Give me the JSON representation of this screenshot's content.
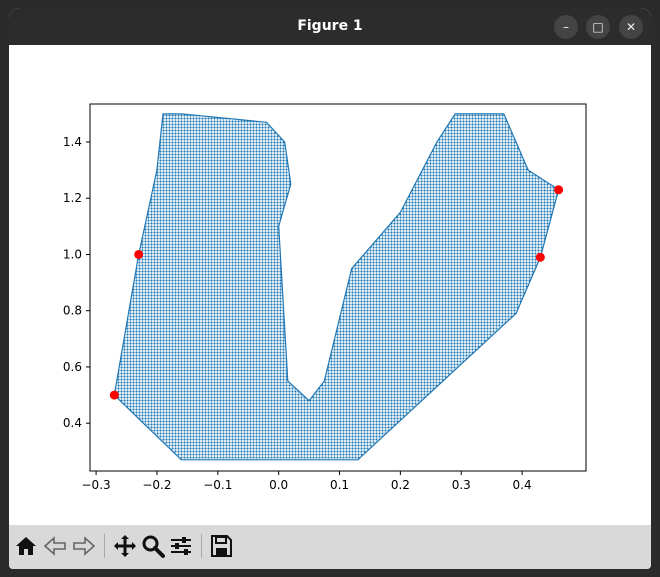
{
  "window": {
    "title": "Figure 1"
  },
  "window_controls": [
    {
      "name": "minimize-button",
      "glyph": "–"
    },
    {
      "name": "maximize-button",
      "glyph": "□"
    },
    {
      "name": "close-button",
      "glyph": "✕"
    }
  ],
  "toolbar": {
    "buttons": [
      "home-icon",
      "back-icon",
      "forward-icon",
      "pan-icon",
      "zoom-icon",
      "configure-subplots-icon",
      "save-icon"
    ]
  },
  "colors": {
    "scatter": "#1f77b4",
    "markers": "#ff0000",
    "titlebar": "#2c2c2c",
    "toolbar": "#d9d9d9"
  },
  "chart_data": {
    "type": "scatter",
    "title": "",
    "xlabel": "",
    "ylabel": "",
    "xlim": [
      -0.31,
      0.505
    ],
    "ylim": [
      0.23,
      1.535
    ],
    "xticks": [
      -0.3,
      -0.2,
      -0.1,
      0.0,
      0.1,
      0.2,
      0.3,
      0.4
    ],
    "xtick_labels": [
      "−0.3",
      "−0.2",
      "−0.1",
      "0.0",
      "0.1",
      "0.2",
      "0.3",
      "0.4"
    ],
    "yticks": [
      0.4,
      0.6,
      0.8,
      1.0,
      1.2,
      1.4
    ],
    "ytick_labels": [
      "0.4",
      "0.6",
      "0.8",
      "1.0",
      "1.2",
      "1.4"
    ],
    "grid": false,
    "series": [
      {
        "kind": "dense-point-cloud",
        "color": "#1f77b4",
        "outline": [
          [
            -0.27,
            0.5
          ],
          [
            -0.23,
            1.0
          ],
          [
            -0.2,
            1.3
          ],
          [
            -0.19,
            1.5
          ],
          [
            -0.16,
            1.5
          ],
          [
            -0.02,
            1.47
          ],
          [
            0.01,
            1.4
          ],
          [
            0.02,
            1.25
          ],
          [
            0.0,
            1.1
          ],
          [
            0.015,
            0.55
          ],
          [
            0.05,
            0.48
          ],
          [
            0.075,
            0.55
          ],
          [
            0.12,
            0.95
          ],
          [
            0.2,
            1.15
          ],
          [
            0.26,
            1.4
          ],
          [
            0.29,
            1.5
          ],
          [
            0.37,
            1.5
          ],
          [
            0.41,
            1.3
          ],
          [
            0.46,
            1.23
          ],
          [
            0.43,
            0.99
          ],
          [
            0.39,
            0.79
          ],
          [
            0.13,
            0.27
          ],
          [
            -0.16,
            0.27
          ],
          [
            -0.27,
            0.5
          ]
        ]
      },
      {
        "kind": "markers",
        "color": "#ff0000",
        "points": [
          [
            -0.27,
            0.5
          ],
          [
            -0.23,
            1.0
          ],
          [
            0.43,
            0.99
          ],
          [
            0.46,
            1.23
          ]
        ]
      }
    ]
  }
}
